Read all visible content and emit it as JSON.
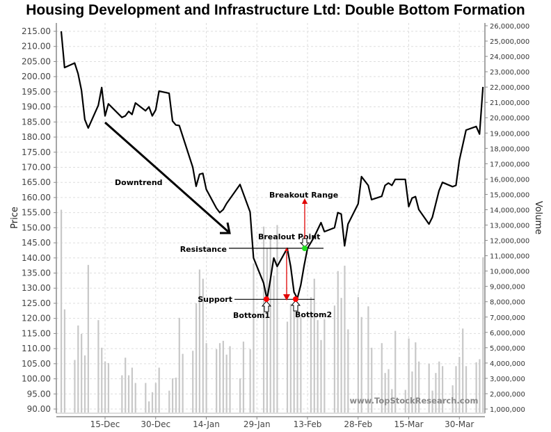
{
  "chart_data": {
    "type": "line",
    "title": "Housing Development and Infrastructure Ltd: Double Bottom Formation",
    "ylabel": "Price",
    "y2label": "Volume",
    "ylim": [
      90,
      215
    ],
    "y2lim": [
      1000000,
      26000000
    ],
    "grid": true,
    "colors": {
      "price": "#000000",
      "volume": "#c8c8c8",
      "annotation_arrow": "#e00000",
      "bottom_marker": "#ff0000",
      "breakout_marker": "#22dd22"
    },
    "x_ticks": [
      "15-Dec",
      "30-Dec",
      "14-Jan",
      "29-Jan",
      "13-Feb",
      "28-Feb",
      "15-Mar",
      "30-Mar"
    ],
    "y_ticks": [
      "90.00",
      "95.00",
      "100.00",
      "105.00",
      "110.00",
      "115.00",
      "120.00",
      "125.00",
      "130.00",
      "135.00",
      "140.00",
      "145.00",
      "150.00",
      "155.00",
      "160.00",
      "165.00",
      "170.00",
      "175.00",
      "180.00",
      "185.00",
      "190.00",
      "195.00",
      "200.00",
      "205.00",
      "210.00",
      "215.00"
    ],
    "y2_ticks": [
      "1,000,000",
      "2,000,000",
      "3,000,000",
      "4,000,000",
      "5,000,000",
      "6,000,000",
      "7,000,000",
      "8,000,000",
      "9,000,000",
      "10,000,000",
      "11,000,000",
      "12,000,000",
      "13,000,000",
      "14,000,000",
      "15,000,000",
      "16,000,000",
      "17,000,000",
      "18,000,000",
      "19,000,000",
      "20,000,000",
      "21,000,000",
      "22,000,000",
      "23,000,000",
      "24,000,000",
      "25,000,000",
      "26,000,000"
    ],
    "price": [
      [
        "02-Dec",
        215.0
      ],
      [
        "03-Dec",
        203.0
      ],
      [
        "06-Dec",
        204.5
      ],
      [
        "07-Dec",
        201.0
      ],
      [
        "08-Dec",
        195.5
      ],
      [
        "09-Dec",
        185.8
      ],
      [
        "10-Dec",
        183.0
      ],
      [
        "13-Dec",
        190.5
      ],
      [
        "14-Dec",
        196.4
      ],
      [
        "15-Dec",
        187.0
      ],
      [
        "16-Dec",
        191.0
      ],
      [
        "20-Dec",
        186.5
      ],
      [
        "21-Dec",
        187.0
      ],
      [
        "22-Dec",
        188.5
      ],
      [
        "23-Dec",
        187.5
      ],
      [
        "24-Dec",
        191.3
      ],
      [
        "27-Dec",
        188.7
      ],
      [
        "28-Dec",
        190.0
      ],
      [
        "29-Dec",
        187.0
      ],
      [
        "30-Dec",
        189.0
      ],
      [
        "31-Dec",
        195.2
      ],
      [
        "03-Jan",
        194.5
      ],
      [
        "04-Jan",
        185.3
      ],
      [
        "05-Jan",
        184.0
      ],
      [
        "06-Jan",
        183.8
      ],
      [
        "10-Jan",
        170.0
      ],
      [
        "11-Jan",
        163.7
      ],
      [
        "12-Jan",
        167.7
      ],
      [
        "13-Jan",
        168.0
      ],
      [
        "14-Jan",
        162.7
      ],
      [
        "17-Jan",
        156.5
      ],
      [
        "18-Jan",
        155.0
      ],
      [
        "19-Jan",
        156.0
      ],
      [
        "20-Jan",
        158.0
      ],
      [
        "24-Jan",
        164.3
      ],
      [
        "27-Jan",
        155.2
      ],
      [
        "28-Jan",
        140.0
      ],
      [
        "31-Jan",
        131.7
      ],
      [
        "01-Feb",
        126.3
      ],
      [
        "02-Feb",
        132.8
      ],
      [
        "03-Feb",
        140.0
      ],
      [
        "04-Feb",
        137.2
      ],
      [
        "07-Feb",
        143.2
      ],
      [
        "08-Feb",
        137.2
      ],
      [
        "09-Feb",
        128.7
      ],
      [
        "10-Feb",
        126.6
      ],
      [
        "11-Feb",
        131.0
      ],
      [
        "12-Feb",
        137.4
      ],
      [
        "13-Feb",
        143.2
      ],
      [
        "15-Feb",
        147.0
      ],
      [
        "17-Feb",
        151.7
      ],
      [
        "18-Feb",
        148.7
      ],
      [
        "21-Feb",
        150.0
      ],
      [
        "22-Feb",
        155.0
      ],
      [
        "23-Feb",
        154.5
      ],
      [
        "24-Feb",
        144.0
      ],
      [
        "25-Feb",
        151.2
      ],
      [
        "28-Feb",
        157.9
      ],
      [
        "01-Mar",
        166.9
      ],
      [
        "03-Mar",
        164.0
      ],
      [
        "04-Mar",
        159.3
      ],
      [
        "07-Mar",
        160.4
      ],
      [
        "08-Mar",
        164.0
      ],
      [
        "09-Mar",
        164.8
      ],
      [
        "10-Mar",
        164.0
      ],
      [
        "11-Mar",
        166.0
      ],
      [
        "14-Mar",
        166.0
      ],
      [
        "15-Mar",
        157.0
      ],
      [
        "16-Mar",
        159.8
      ],
      [
        "17-Mar",
        160.3
      ],
      [
        "18-Mar",
        156.0
      ],
      [
        "21-Mar",
        151.2
      ],
      [
        "22-Mar",
        153.5
      ],
      [
        "24-Mar",
        162.3
      ],
      [
        "25-Mar",
        165.0
      ],
      [
        "28-Mar",
        163.6
      ],
      [
        "29-Mar",
        164.0
      ],
      [
        "30-Mar",
        172.4
      ],
      [
        "01-Apr",
        182.3
      ],
      [
        "04-Apr",
        183.5
      ],
      [
        "05-Apr",
        181.0
      ],
      [
        "06-Apr",
        196.6
      ]
    ],
    "volume": [
      [
        "02-Dec",
        14000000
      ],
      [
        "03-Dec",
        7500000
      ],
      [
        "06-Dec",
        4200000
      ],
      [
        "07-Dec",
        6450000
      ],
      [
        "08-Dec",
        5900000
      ],
      [
        "09-Dec",
        4500000
      ],
      [
        "10-Dec",
        10400000
      ],
      [
        "13-Dec",
        6800000
      ],
      [
        "14-Dec",
        5000000
      ],
      [
        "15-Dec",
        4100000
      ],
      [
        "16-Dec",
        4000000
      ],
      [
        "20-Dec",
        3200000
      ],
      [
        "21-Dec",
        4350000
      ],
      [
        "22-Dec",
        3200000
      ],
      [
        "23-Dec",
        3700000
      ],
      [
        "24-Dec",
        2700000
      ],
      [
        "27-Dec",
        2700000
      ],
      [
        "28-Dec",
        1500000
      ],
      [
        "29-Dec",
        2100000
      ],
      [
        "30-Dec",
        2700000
      ],
      [
        "31-Dec",
        3700000
      ],
      [
        "03-Jan",
        2200000
      ],
      [
        "04-Jan",
        3000000
      ],
      [
        "05-Jan",
        3050000
      ],
      [
        "06-Jan",
        6950000
      ],
      [
        "07-Jan",
        4600000
      ],
      [
        "10-Jan",
        4800000
      ],
      [
        "11-Jan",
        7900000
      ],
      [
        "12-Jan",
        10100000
      ],
      [
        "13-Jan",
        9500000
      ],
      [
        "14-Jan",
        5300000
      ],
      [
        "17-Jan",
        4900000
      ],
      [
        "18-Jan",
        5300000
      ],
      [
        "19-Jan",
        5450000
      ],
      [
        "20-Jan",
        4550000
      ],
      [
        "21-Jan",
        5100000
      ],
      [
        "24-Jan",
        3000000
      ],
      [
        "25-Jan",
        5400000
      ],
      [
        "27-Jan",
        4900000
      ],
      [
        "28-Jan",
        10500000
      ],
      [
        "31-Jan",
        12900000
      ],
      [
        "01-Feb",
        11500000
      ],
      [
        "02-Feb",
        12200000
      ],
      [
        "03-Feb",
        9700000
      ],
      [
        "04-Feb",
        13000000
      ],
      [
        "07-Feb",
        6700000
      ],
      [
        "08-Feb",
        7850000
      ],
      [
        "09-Feb",
        7900000
      ],
      [
        "10-Feb",
        8000000
      ],
      [
        "11-Feb",
        7000000
      ],
      [
        "14-Feb",
        8300000
      ],
      [
        "15-Feb",
        9500000
      ],
      [
        "16-Feb",
        6800000
      ],
      [
        "17-Feb",
        5500000
      ],
      [
        "18-Feb",
        6850000
      ],
      [
        "21-Feb",
        7750000
      ],
      [
        "22-Feb",
        10000000
      ],
      [
        "23-Feb",
        8250000
      ],
      [
        "24-Feb",
        10350000
      ],
      [
        "25-Feb",
        6200000
      ],
      [
        "28-Feb",
        8300000
      ],
      [
        "01-Mar",
        7000000
      ],
      [
        "03-Mar",
        7700000
      ],
      [
        "04-Mar",
        5000000
      ],
      [
        "07-Mar",
        5300000
      ],
      [
        "08-Mar",
        3350000
      ],
      [
        "09-Mar",
        3600000
      ],
      [
        "10-Mar",
        2300000
      ],
      [
        "11-Mar",
        6100000
      ],
      [
        "14-Mar",
        2250000
      ],
      [
        "15-Mar",
        5600000
      ],
      [
        "16-Mar",
        3450000
      ],
      [
        "17-Mar",
        5350000
      ],
      [
        "18-Mar",
        4100000
      ],
      [
        "21-Mar",
        3950000
      ],
      [
        "22-Mar",
        2200000
      ],
      [
        "23-Mar",
        3350000
      ],
      [
        "24-Mar",
        4100000
      ],
      [
        "25-Mar",
        3800000
      ],
      [
        "28-Mar",
        2550000
      ],
      [
        "29-Mar",
        3800000
      ],
      [
        "30-Mar",
        4400000
      ],
      [
        "31-Mar",
        6250000
      ],
      [
        "01-Apr",
        3800000
      ],
      [
        "04-Apr",
        4050000
      ],
      [
        "05-Apr",
        4250000
      ],
      [
        "06-Apr",
        10900000
      ]
    ],
    "annotations": {
      "downtrend": "Downtrend",
      "breakout_range": "Breakout Range",
      "breakout_point": "Brealout Point",
      "resistance": "Resistance",
      "support": "Support",
      "bottom1": "Bottom1",
      "bottom2": "Bottom2",
      "support_level": 126.3,
      "resistance_level": 143.2
    },
    "watermark": "www.TopStockResearch.com"
  }
}
